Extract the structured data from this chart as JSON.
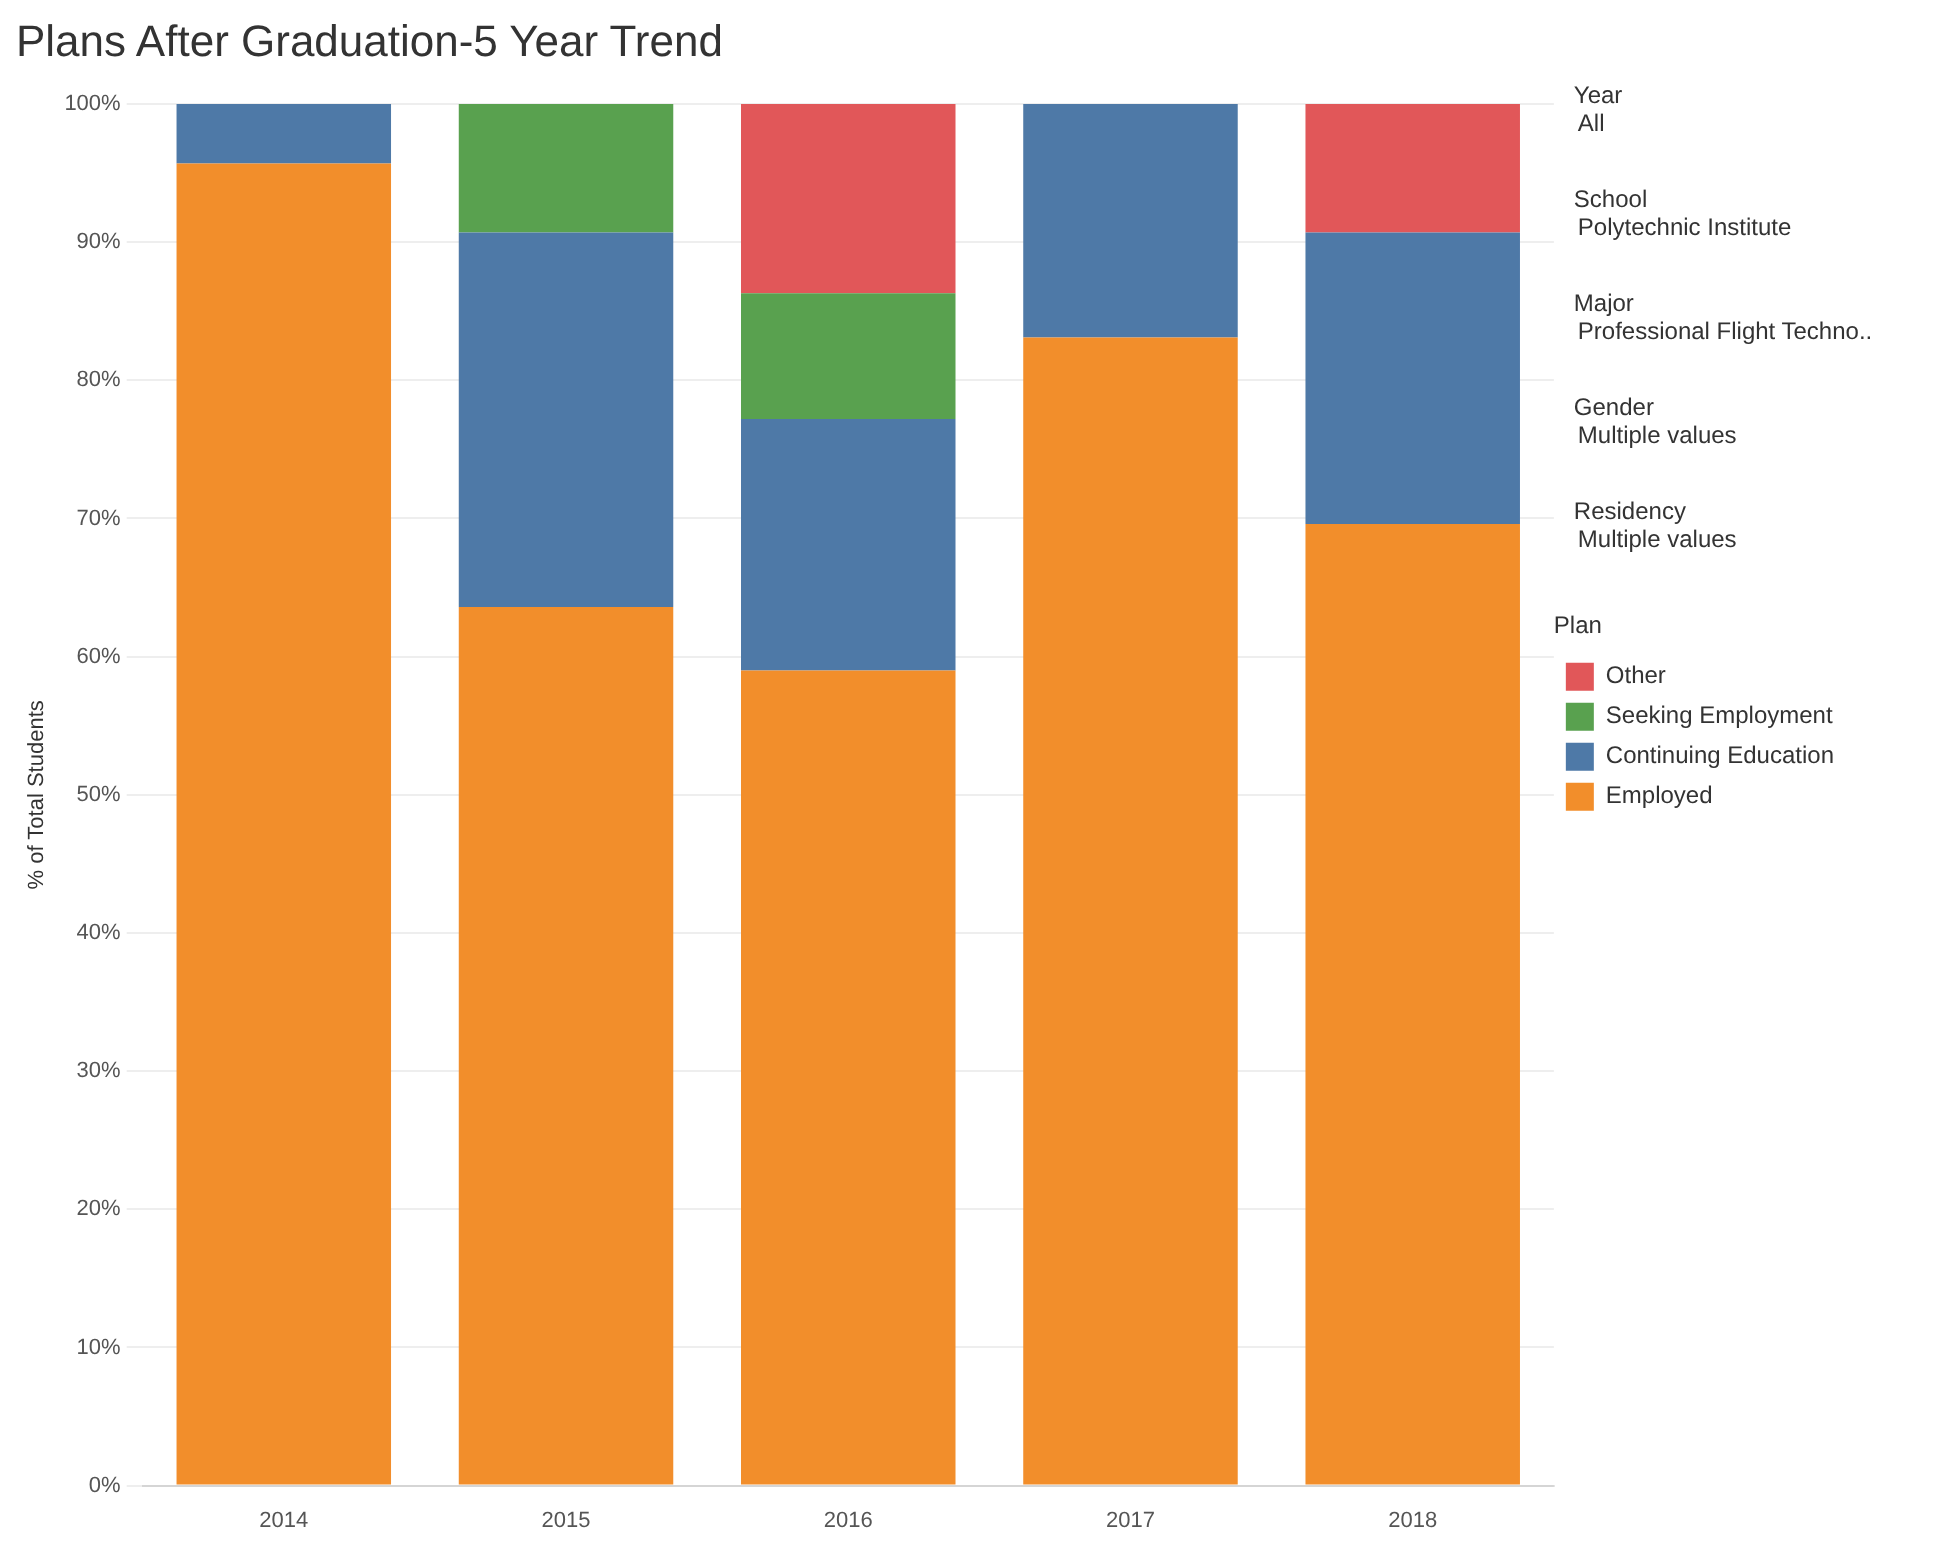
{
  "chart_data": {
    "type": "bar",
    "title": "Plans After Graduation-5 Year Trend",
    "ylabel": "% of Total Students",
    "legend_title": "Plan",
    "categories": [
      "2014",
      "2015",
      "2016",
      "2017",
      "2018"
    ],
    "stacked": true,
    "series": [
      {
        "name": "Employed",
        "color": "#f28e2b",
        "values": [
          95.7,
          63.6,
          59.0,
          83.1,
          69.6
        ]
      },
      {
        "name": "Continuing Education",
        "color": "#4e79a7",
        "values": [
          4.3,
          27.1,
          18.2,
          16.9,
          21.1
        ]
      },
      {
        "name": "Seeking Employment",
        "color": "#59a14f",
        "values": [
          null,
          9.3,
          9.1,
          null,
          null
        ]
      },
      {
        "name": "Other",
        "color": "#e15759",
        "values": [
          null,
          null,
          13.7,
          null,
          9.3
        ]
      }
    ],
    "ylim": [
      0,
      100
    ],
    "yticks": [
      {
        "value": 0,
        "label": "0%"
      },
      {
        "value": 10,
        "label": "10%"
      },
      {
        "value": 20,
        "label": "20%"
      },
      {
        "value": 30,
        "label": "30%"
      },
      {
        "value": 40,
        "label": "40%"
      },
      {
        "value": 50,
        "label": "50%"
      },
      {
        "value": 60,
        "label": "60%"
      },
      {
        "value": 70,
        "label": "70%"
      },
      {
        "value": 80,
        "label": "80%"
      },
      {
        "value": 90,
        "label": "90%"
      },
      {
        "value": 100,
        "label": "100%"
      }
    ],
    "grid": "y",
    "legend": "right",
    "annotations": [
      "Year",
      "All",
      "School",
      "Polytechnic Institute",
      "Major",
      "Professional Flight Techno..",
      "Gender",
      "Multiple values",
      "Residency",
      "Multiple values"
    ]
  }
}
